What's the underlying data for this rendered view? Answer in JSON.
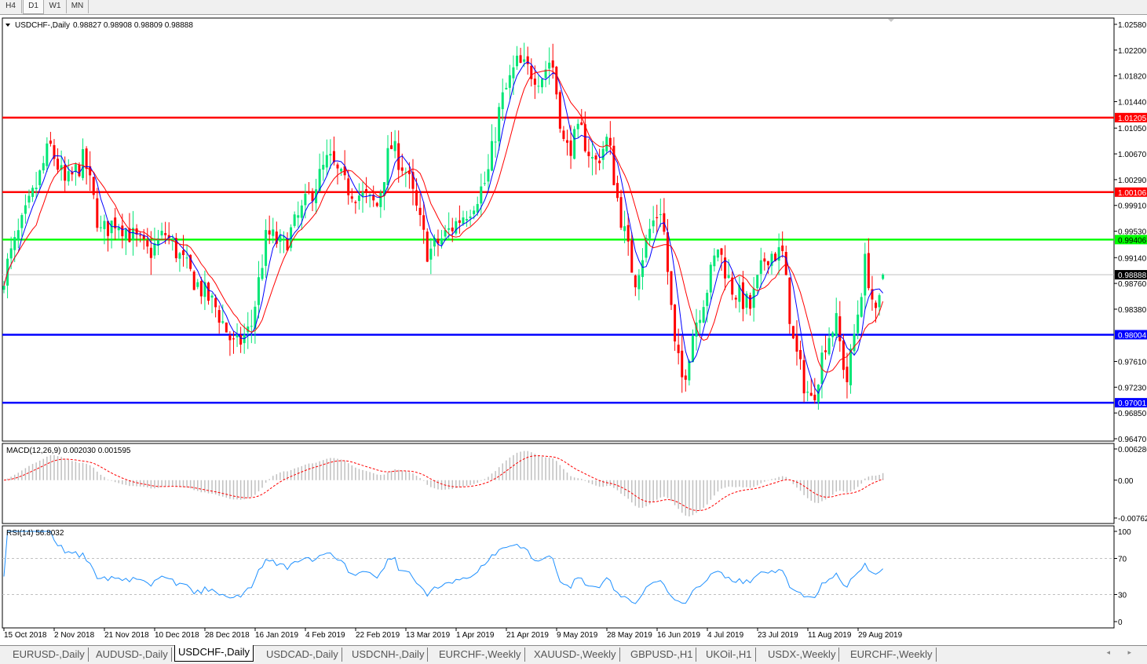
{
  "timeframes": [
    "H4",
    "D1",
    "W1",
    "MN"
  ],
  "active_timeframe": "D1",
  "chart_header": {
    "symbol": "USDCHF-,Daily",
    "ohlc": "0.98827 0.98908 0.98809 0.98888"
  },
  "macd_header": "MACD(12,26,9) 0.002030 0.001595",
  "rsi_header": "RSI(14) 56.8032",
  "chart_data": {
    "type": "candlestick",
    "symbol": "USDCHF",
    "timeframe": "Daily",
    "last": {
      "open": 0.98827,
      "high": 0.98908,
      "low": 0.98809,
      "close": 0.98888
    },
    "price_axis": {
      "range": [
        0.9647,
        1.0258
      ],
      "ticks": [
        "1.02580",
        "1.02200",
        "1.01820",
        "1.01440",
        "1.01050",
        "1.00670",
        "1.00290",
        "0.99910",
        "0.99530",
        "0.99140",
        "0.98760",
        "0.98380",
        "0.97610",
        "0.97230",
        "0.96850",
        "0.96470"
      ]
    },
    "level_lines": [
      {
        "price": "1.01205",
        "color": "#ff0000"
      },
      {
        "price": "1.00106",
        "color": "#ff0000"
      },
      {
        "price": "0.99406",
        "color": "#00ff00"
      },
      {
        "price": "0.98004",
        "color": "#0000ff"
      },
      {
        "price": "0.97001",
        "color": "#0000ff"
      }
    ],
    "bid_label": "0.98888",
    "time_axis": [
      "15 Oct 2018",
      "2 Nov 2018",
      "21 Nov 2018",
      "10 Dec 2018",
      "28 Dec 2018",
      "16 Jan 2019",
      "4 Feb 2019",
      "22 Feb 2019",
      "13 Mar 2019",
      "1 Apr 2019",
      "21 Apr 2019",
      "9 May 2019",
      "28 May 2019",
      "16 Jun 2019",
      "4 Jul 2019",
      "23 Jul 2019",
      "11 Aug 2019",
      "29 Aug 2019"
    ],
    "approx_close_path": [
      [
        "2018-10-15",
        0.989
      ],
      [
        "2018-10-28",
        1.003
      ],
      [
        "2018-11-01",
        1.008
      ],
      [
        "2018-11-07",
        1.002
      ],
      [
        "2018-11-14",
        1.006
      ],
      [
        "2018-11-20",
        0.995
      ],
      [
        "2018-11-26",
        0.997
      ],
      [
        "2018-12-08",
        0.992
      ],
      [
        "2018-12-14",
        0.995
      ],
      [
        "2018-12-25",
        0.988
      ],
      [
        "2019-01-02",
        0.984
      ],
      [
        "2019-01-09",
        0.978
      ],
      [
        "2019-01-15",
        0.981
      ],
      [
        "2019-01-21",
        0.995
      ],
      [
        "2019-01-27",
        0.993
      ],
      [
        "2019-02-04",
        0.999
      ],
      [
        "2019-02-13",
        1.006
      ],
      [
        "2019-02-19",
        1.002
      ],
      [
        "2019-03-03",
        0.999
      ],
      [
        "2019-03-08",
        1.008
      ],
      [
        "2019-03-14",
        1.004
      ],
      [
        "2019-03-22",
        0.992
      ],
      [
        "2019-03-29",
        0.995
      ],
      [
        "2019-04-07",
        0.999
      ],
      [
        "2019-04-13",
        1.003
      ],
      [
        "2019-04-18",
        1.014
      ],
      [
        "2019-04-24",
        1.02
      ],
      [
        "2019-05-03",
        1.018
      ],
      [
        "2019-05-07",
        1.021
      ],
      [
        "2019-05-12",
        1.007
      ],
      [
        "2019-05-18",
        1.01
      ],
      [
        "2019-05-23",
        1.005
      ],
      [
        "2019-05-28",
        1.009
      ],
      [
        "2019-06-01",
        0.999
      ],
      [
        "2019-06-07",
        0.988
      ],
      [
        "2019-06-13",
        0.996
      ],
      [
        "2019-06-17",
        0.999
      ],
      [
        "2019-06-22",
        0.978
      ],
      [
        "2019-06-25",
        0.973
      ],
      [
        "2019-06-29",
        0.981
      ],
      [
        "2019-07-04",
        0.987
      ],
      [
        "2019-07-08",
        0.993
      ],
      [
        "2019-07-13",
        0.987
      ],
      [
        "2019-07-20",
        0.984
      ],
      [
        "2019-07-26",
        0.992
      ],
      [
        "2019-08-01",
        0.992
      ],
      [
        "2019-08-05",
        0.979
      ],
      [
        "2019-08-09",
        0.973
      ],
      [
        "2019-08-12",
        0.97
      ],
      [
        "2019-08-17",
        0.979
      ],
      [
        "2019-08-21",
        0.982
      ],
      [
        "2019-08-25",
        0.973
      ],
      [
        "2019-08-29",
        0.983
      ],
      [
        "2019-09-01",
        0.991
      ],
      [
        "2019-09-05",
        0.982
      ],
      [
        "2019-09-08",
        0.98888
      ]
    ],
    "bull_color": "#00e676",
    "bear_color": "#ff0000",
    "ma_fast_color": "#0000ff",
    "ma_slow_color": "#ff0000",
    "macd": {
      "axis": [
        "0.006286",
        "0.00",
        "-0.00762"
      ],
      "range": [
        -0.00762,
        0.006286
      ],
      "histogram_color": "#c0c0c0",
      "signal_color": "#ff0000"
    },
    "rsi": {
      "axis": [
        "100",
        "70",
        "30",
        "0"
      ],
      "levels": [
        70,
        30
      ],
      "color": "#1e90ff"
    }
  },
  "symbol_tabs": [
    "EURUSD-,Daily",
    "AUDUSD-,Daily",
    "USDCHF-,Daily",
    "USDCAD-,Daily",
    "USDCNH-,Daily",
    "EURCHF-,Weekly",
    "XAUUSD-,Weekly",
    "GBPUSD-,H1",
    "UKOil-,H1",
    "USDX-,Weekly",
    "EURCHF-,Weekly"
  ],
  "active_tab": "USDCHF-,Daily",
  "scroll_arrows": "◂ ▸"
}
